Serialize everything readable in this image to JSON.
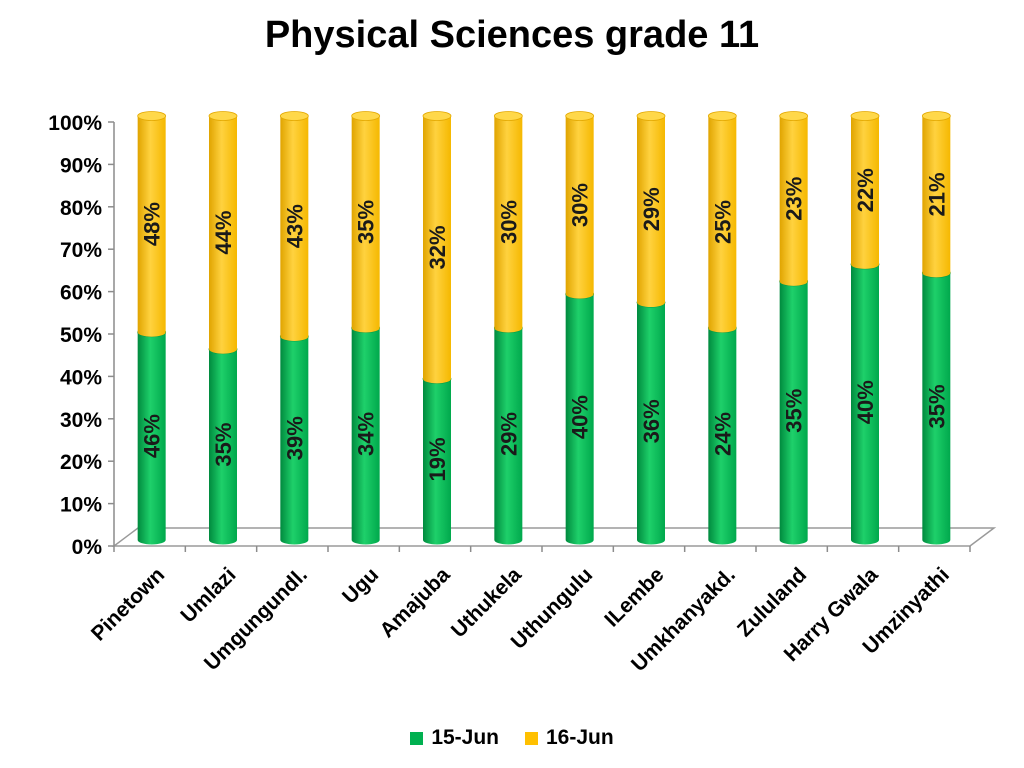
{
  "chart_data": {
    "type": "bar",
    "stacked": true,
    "title": "Physical Sciences grade 11",
    "xlabel": "",
    "ylabel": "",
    "categories": [
      "Pinetown",
      "Umlazi",
      "Umgungundl.",
      "Ugu",
      "Amajuba",
      "Uthukela",
      "Uthungulu",
      "ILembe",
      "Umkhanyakd.",
      "Zululand",
      "Harry Gwala",
      "Umzinyathi"
    ],
    "series": [
      {
        "name": "15-Jun",
        "color": "#00B050",
        "values": [
          49,
          45,
          48,
          50,
          38,
          50,
          58,
          56,
          50,
          61,
          65,
          63
        ],
        "labels": [
          "46%",
          "35%",
          "39%",
          "34%",
          "19%",
          "29%",
          "40%",
          "36%",
          "24%",
          "35%",
          "40%",
          "35%"
        ]
      },
      {
        "name": "16-Jun",
        "color": "#FFC000",
        "values": [
          51,
          55,
          52,
          50,
          62,
          50,
          42,
          44,
          50,
          39,
          35,
          37
        ],
        "labels": [
          "48%",
          "44%",
          "43%",
          "35%",
          "32%",
          "30%",
          "30%",
          "29%",
          "25%",
          "23%",
          "22%",
          "21%"
        ]
      }
    ],
    "yticks": [
      "0%",
      "10%",
      "20%",
      "30%",
      "40%",
      "50%",
      "60%",
      "70%",
      "80%",
      "90%",
      "100%"
    ],
    "ylim": [
      0,
      100
    ],
    "grid": false,
    "legend": "bottom"
  }
}
